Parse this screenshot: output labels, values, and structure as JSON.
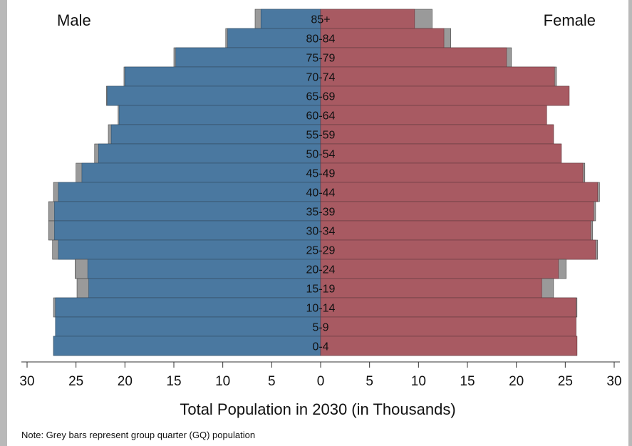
{
  "chart_data": {
    "type": "bar",
    "orientation": "population-pyramid",
    "xlabel": "Total Population in 2030 (in Thousands)",
    "note": "Note:  Grey bars represent group quarter (GQ) population",
    "left_label": "Male",
    "right_label": "Female",
    "xlim": [
      -30,
      30
    ],
    "xticks": [
      -30,
      -25,
      -20,
      -15,
      -10,
      -5,
      0,
      5,
      10,
      15,
      20,
      25,
      30
    ],
    "xtick_labels": [
      "30",
      "25",
      "20",
      "15",
      "10",
      "5",
      "0",
      "5",
      "10",
      "15",
      "20",
      "25",
      "30"
    ],
    "categories": [
      "85+",
      "80-84",
      "75-79",
      "70-74",
      "65-69",
      "60-64",
      "55-59",
      "50-54",
      "45-49",
      "40-44",
      "35-39",
      "30-34",
      "25-29",
      "20-24",
      "15-19",
      "10-14",
      "5-9",
      "0-4"
    ],
    "series": [
      {
        "name": "Male",
        "values": [
          6.1,
          9.5,
          14.8,
          20.0,
          21.8,
          20.6,
          21.4,
          22.7,
          24.4,
          26.8,
          27.2,
          27.2,
          26.8,
          23.8,
          23.7,
          27.1,
          27.1,
          27.3
        ]
      },
      {
        "name": "Male GQ",
        "values": [
          0.6,
          0.2,
          0.2,
          0.1,
          0.1,
          0.1,
          0.3,
          0.4,
          0.6,
          0.5,
          0.6,
          0.6,
          0.6,
          1.3,
          1.2,
          0.2,
          0.0,
          0.0
        ]
      },
      {
        "name": "Female",
        "values": [
          9.6,
          12.6,
          19.0,
          23.9,
          25.4,
          23.1,
          23.8,
          24.6,
          26.8,
          28.3,
          27.9,
          27.6,
          28.1,
          24.3,
          22.6,
          26.1,
          26.1,
          26.2
        ]
      },
      {
        "name": "Female GQ",
        "values": [
          1.8,
          0.7,
          0.5,
          0.2,
          0.0,
          0.0,
          0.0,
          0.0,
          0.2,
          0.2,
          0.2,
          0.2,
          0.2,
          0.8,
          1.2,
          0.1,
          0.0,
          0.0
        ]
      }
    ],
    "colors": {
      "male": "#4a78a0",
      "female": "#a85a62",
      "gq": "#9a9a9a",
      "axis": "#333333"
    },
    "grid": false,
    "legend": "none"
  }
}
